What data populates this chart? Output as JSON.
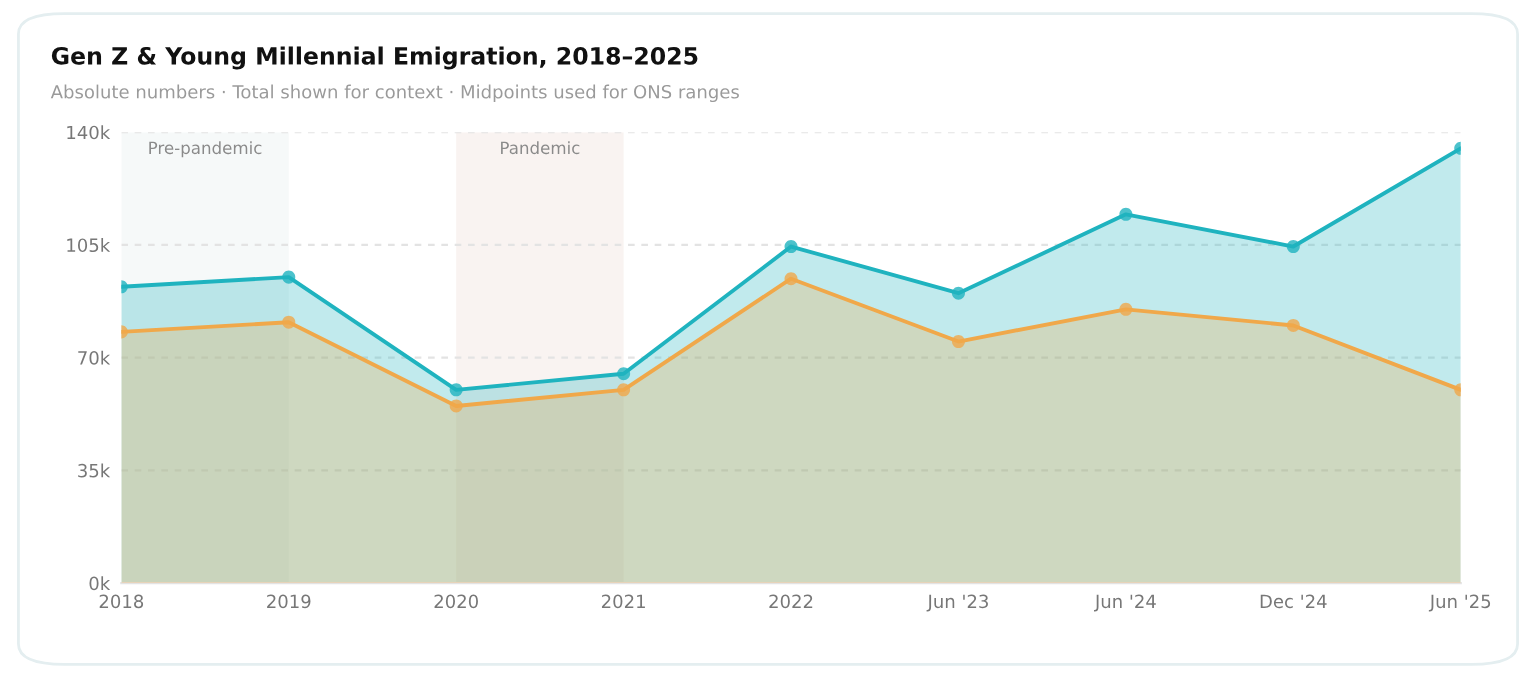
{
  "chart_data": {
    "type": "area",
    "title": "Gen Z & Young Millennial Emigration, 2018–2025",
    "subtitle": "Absolute numbers · Total shown for context · Midpoints used for ONS ranges",
    "categories": [
      "2018",
      "2019",
      "2020",
      "2021",
      "2022",
      "Jun '23",
      "Jun '24",
      "Dec '24",
      "Jun '25"
    ],
    "series": [
      {
        "color": "#1fb3bf",
        "values": [
          92000,
          95000,
          60000,
          65000,
          104500,
          90000,
          114500,
          104500,
          135000
        ]
      },
      {
        "color": "#f0a84a",
        "values": [
          78000,
          81000,
          55000,
          60000,
          94500,
          75000,
          85000,
          80000,
          60000
        ]
      }
    ],
    "ylim": [
      0,
      140000
    ],
    "yticks": [
      {
        "value": 0,
        "label": "0k"
      },
      {
        "value": 35000,
        "label": "35k"
      },
      {
        "value": 70000,
        "label": "70k"
      },
      {
        "value": 105000,
        "label": "105k"
      },
      {
        "value": 140000,
        "label": "140k"
      }
    ],
    "bands": [
      {
        "axis": "x",
        "from": "2018",
        "to": "2019",
        "label": "Pre-pandemic",
        "color": "#f6f9f9"
      },
      {
        "axis": "x",
        "from": "2020",
        "to": "2021",
        "label": "Pandemic",
        "color": "#f9f3f1"
      }
    ],
    "grid": "y",
    "marker": "circle",
    "line_style": "solid"
  }
}
